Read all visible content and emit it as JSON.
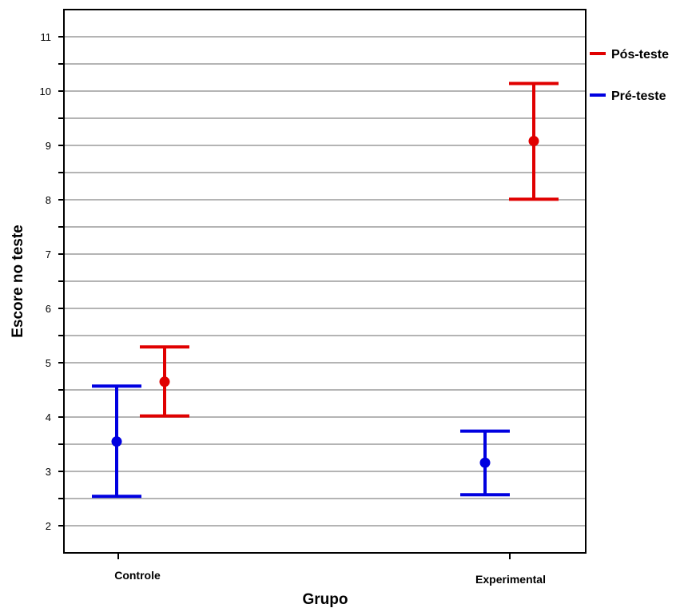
{
  "chart_data": {
    "type": "errorbar",
    "xlabel": "Grupo",
    "ylabel": "Escore no teste",
    "categories": [
      "Controle",
      "Experimental"
    ],
    "ylim": [
      1.5,
      11.5
    ],
    "yticks": [
      2,
      3,
      4,
      5,
      6,
      7,
      8,
      9,
      10,
      11
    ],
    "grid": true,
    "legend_position": "top-right",
    "series": [
      {
        "name": "Pós-teste",
        "color": "#e00000",
        "points": [
          {
            "category": "Controle",
            "mean": 4.65,
            "lower": 4.02,
            "upper": 5.29
          },
          {
            "category": "Experimental",
            "mean": 9.08,
            "lower": 8.01,
            "upper": 10.14
          }
        ]
      },
      {
        "name": "Pré-teste",
        "color": "#0000e0",
        "points": [
          {
            "category": "Controle",
            "mean": 3.55,
            "lower": 2.54,
            "upper": 4.57
          },
          {
            "category": "Experimental",
            "mean": 3.16,
            "lower": 2.57,
            "upper": 3.74
          }
        ]
      }
    ]
  }
}
